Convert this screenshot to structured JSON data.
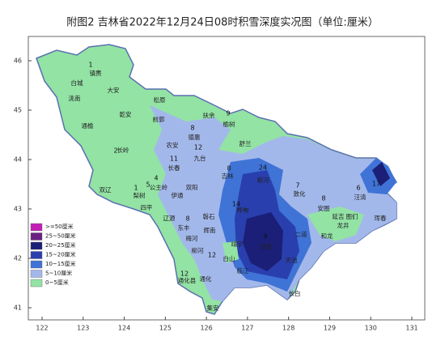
{
  "title": "附图2  吉林省2022年12月24日08时积雪深度实况图（单位:厘米）",
  "map": {
    "xticks": [
      122,
      123,
      124,
      125,
      126,
      127,
      128,
      129,
      130,
      131
    ],
    "yticks": [
      41,
      42,
      43,
      44,
      45,
      46
    ]
  },
  "legend": [
    {
      "label": ">=50厘米",
      "color": "#c21fb5"
    },
    {
      "label": "25~50厘米",
      "color": "#6a1f83"
    },
    {
      "label": "20~25厘米",
      "color": "#1b1f77"
    },
    {
      "label": "15~20厘米",
      "color": "#2a3fae"
    },
    {
      "label": "10~15厘米",
      "color": "#3f73d6"
    },
    {
      "label": "5~10厘米",
      "color": "#a3b8ea"
    },
    {
      "label": "0~5厘米",
      "color": "#93e3a4"
    }
  ],
  "places": [
    "镇赉",
    "白城",
    "洮南",
    "大安",
    "松原",
    "乾安",
    "前郭",
    "扶余",
    "榆树",
    "通榆",
    "长岭",
    "农安",
    "德惠",
    "舒兰",
    "九台",
    "长春",
    "吉林",
    "蛟河",
    "敦化",
    "双辽",
    "公主岭",
    "梨树",
    "四平",
    "伊通",
    "双阳",
    "磐石",
    "桦甸",
    "安图",
    "汪清",
    "珲春",
    "图们",
    "龙井",
    "延吉",
    "和龙",
    "辽源",
    "东丰",
    "梅河",
    "辉南",
    "柳河",
    "二道",
    "天池",
    "通化县",
    "通化",
    "靖宇",
    "抚松",
    "临江",
    "长白",
    "集安",
    "白山"
  ],
  "depths": [
    1,
    9,
    2,
    8,
    12,
    11,
    8,
    24,
    7,
    8,
    6,
    17,
    4,
    5,
    1,
    12,
    14,
    9,
    12,
    8
  ]
}
